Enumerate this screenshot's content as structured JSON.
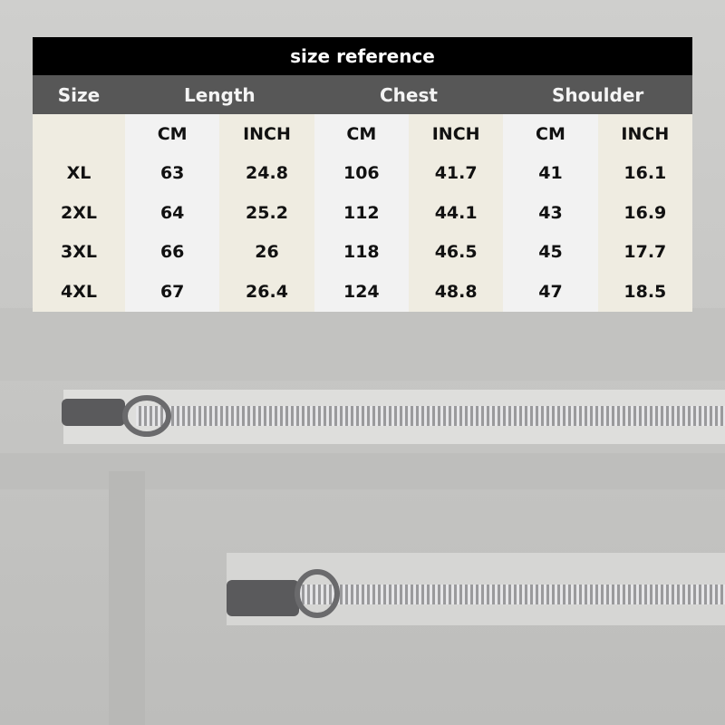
{
  "table": {
    "title": "size reference",
    "headers": [
      "Size",
      "Length",
      "Chest",
      "Shoulder"
    ],
    "units": [
      "CM",
      "INCH",
      "CM",
      "INCH",
      "CM",
      "INCH"
    ],
    "rows": [
      {
        "size": "XL",
        "values": [
          "63",
          "24.8",
          "106",
          "41.7",
          "41",
          "16.1"
        ]
      },
      {
        "size": "2XL",
        "values": [
          "64",
          "25.2",
          "112",
          "44.1",
          "43",
          "16.9"
        ]
      },
      {
        "size": "3XL",
        "values": [
          "66",
          "26",
          "118",
          "46.5",
          "45",
          "17.7"
        ]
      },
      {
        "size": "4XL",
        "values": [
          "67",
          "26.4",
          "124",
          "48.8",
          "47",
          "18.5"
        ]
      }
    ]
  },
  "colors": {
    "title_bg": "#000000",
    "header_bg": "#575757",
    "cream": "#efece1",
    "light_gray": "#f2f2f2",
    "fabric": "#c9c9c7"
  }
}
